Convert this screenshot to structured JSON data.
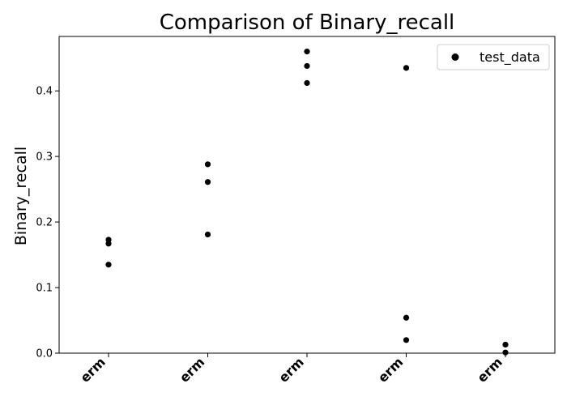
{
  "chart_data": {
    "type": "scatter",
    "title": "Comparison of Binary_recall",
    "xlabel": "",
    "ylabel": "Binary_recall",
    "categories": [
      "erm",
      "erm",
      "erm",
      "erm",
      "erm"
    ],
    "series": [
      {
        "name": "test_data",
        "color": "#000000",
        "points": [
          {
            "category_index": 0,
            "y": 0.173
          },
          {
            "category_index": 0,
            "y": 0.167
          },
          {
            "category_index": 0,
            "y": 0.135
          },
          {
            "category_index": 1,
            "y": 0.288
          },
          {
            "category_index": 1,
            "y": 0.261
          },
          {
            "category_index": 1,
            "y": 0.181
          },
          {
            "category_index": 2,
            "y": 0.46
          },
          {
            "category_index": 2,
            "y": 0.438
          },
          {
            "category_index": 2,
            "y": 0.412
          },
          {
            "category_index": 3,
            "y": 0.435
          },
          {
            "category_index": 3,
            "y": 0.054
          },
          {
            "category_index": 3,
            "y": 0.02
          },
          {
            "category_index": 4,
            "y": 0.013
          },
          {
            "category_index": 4,
            "y": 0.001
          }
        ]
      }
    ],
    "ylim": [
      0,
      0.483
    ],
    "yticks": [
      0.0,
      0.1,
      0.2,
      0.3,
      0.4
    ],
    "ytick_labels": [
      "0.0",
      "0.1",
      "0.2",
      "0.3",
      "0.4"
    ],
    "grid": false,
    "legend": {
      "position": "top-right",
      "entries": [
        "test_data"
      ]
    }
  }
}
